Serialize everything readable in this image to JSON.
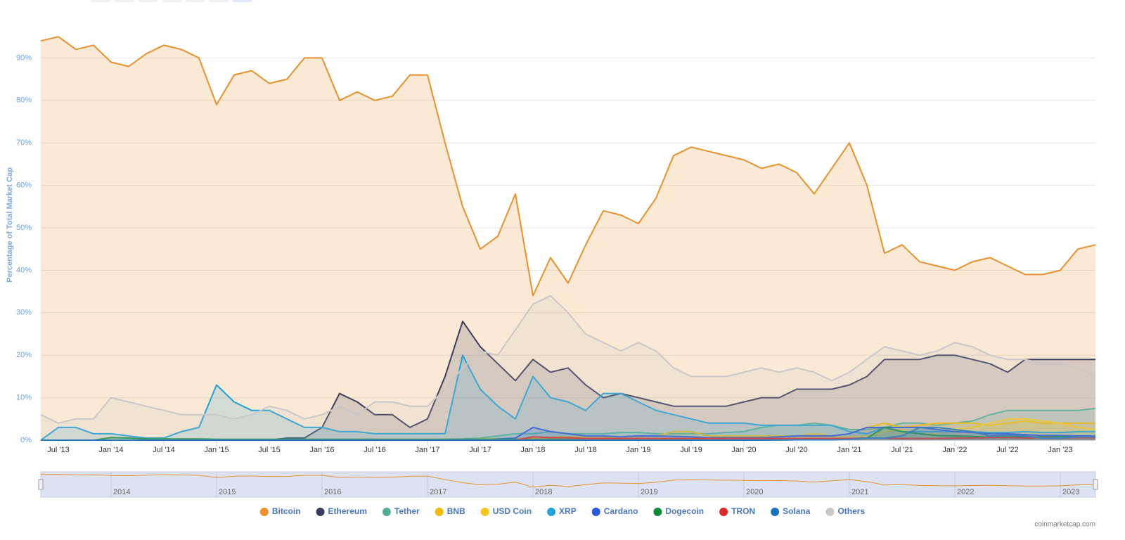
{
  "chart_data": {
    "type": "area",
    "y_label": "Percentage of Total Market Cap",
    "credit": "coinmarketcap.com",
    "x": [
      "2013-05",
      "2013-07",
      "2013-09",
      "2013-11",
      "2014-01",
      "2014-03",
      "2014-05",
      "2014-07",
      "2014-09",
      "2014-11",
      "2015-01",
      "2015-03",
      "2015-05",
      "2015-07",
      "2015-09",
      "2015-11",
      "2016-01",
      "2016-03",
      "2016-05",
      "2016-07",
      "2016-09",
      "2016-11",
      "2017-01",
      "2017-03",
      "2017-05",
      "2017-07",
      "2017-09",
      "2017-11",
      "2018-01",
      "2018-03",
      "2018-05",
      "2018-07",
      "2018-09",
      "2018-11",
      "2019-01",
      "2019-03",
      "2019-05",
      "2019-07",
      "2019-09",
      "2019-11",
      "2020-01",
      "2020-03",
      "2020-05",
      "2020-07",
      "2020-09",
      "2020-11",
      "2021-01",
      "2021-03",
      "2021-05",
      "2021-07",
      "2021-09",
      "2021-11",
      "2022-01",
      "2022-03",
      "2022-05",
      "2022-07",
      "2022-09",
      "2022-11",
      "2023-01",
      "2023-03",
      "2023-05"
    ],
    "xlim": [
      "2013-05",
      "2023-05"
    ],
    "xticks": [
      {
        "value": "2013-07",
        "label": "Jul '13"
      },
      {
        "value": "2014-01",
        "label": "Jan '14"
      },
      {
        "value": "2014-07",
        "label": "Jul '14"
      },
      {
        "value": "2015-01",
        "label": "Jan '15"
      },
      {
        "value": "2015-07",
        "label": "Jul '15"
      },
      {
        "value": "2016-01",
        "label": "Jan '16"
      },
      {
        "value": "2016-07",
        "label": "Jul '16"
      },
      {
        "value": "2017-01",
        "label": "Jan '17"
      },
      {
        "value": "2017-07",
        "label": "Jul '17"
      },
      {
        "value": "2018-01",
        "label": "Jan '18"
      },
      {
        "value": "2018-07",
        "label": "Jul '18"
      },
      {
        "value": "2019-01",
        "label": "Jan '19"
      },
      {
        "value": "2019-07",
        "label": "Jul '19"
      },
      {
        "value": "2020-01",
        "label": "Jan '20"
      },
      {
        "value": "2020-07",
        "label": "Jul '20"
      },
      {
        "value": "2021-01",
        "label": "Jan '21"
      },
      {
        "value": "2021-07",
        "label": "Jul '21"
      },
      {
        "value": "2022-01",
        "label": "Jan '22"
      },
      {
        "value": "2022-07",
        "label": "Jul '22"
      },
      {
        "value": "2023-01",
        "label": "Jan '23"
      }
    ],
    "navigator_ticks": [
      {
        "value": "2014-01",
        "label": "2014"
      },
      {
        "value": "2015-01",
        "label": "2015"
      },
      {
        "value": "2016-01",
        "label": "2016"
      },
      {
        "value": "2017-01",
        "label": "2017"
      },
      {
        "value": "2018-01",
        "label": "2018"
      },
      {
        "value": "2019-01",
        "label": "2019"
      },
      {
        "value": "2020-01",
        "label": "2020"
      },
      {
        "value": "2021-01",
        "label": "2021"
      },
      {
        "value": "2022-01",
        "label": "2022"
      },
      {
        "value": "2023-01",
        "label": "2023"
      }
    ],
    "ylim": [
      0,
      100
    ],
    "yticks": [
      {
        "value": 0,
        "label": "0%"
      },
      {
        "value": 10,
        "label": "10%"
      },
      {
        "value": 20,
        "label": "20%"
      },
      {
        "value": 30,
        "label": "30%"
      },
      {
        "value": 40,
        "label": "40%"
      },
      {
        "value": 50,
        "label": "50%"
      },
      {
        "value": 60,
        "label": "60%"
      },
      {
        "value": 70,
        "label": "70%"
      },
      {
        "value": 80,
        "label": "80%"
      },
      {
        "value": 90,
        "label": "90%"
      }
    ],
    "grid": true,
    "series": [
      {
        "name": "Bitcoin",
        "color": "#e8912e",
        "values": [
          94,
          95,
          92,
          93,
          89,
          88,
          91,
          93,
          92,
          90,
          79,
          86,
          87,
          84,
          85,
          90,
          90,
          80,
          82,
          80,
          81,
          86,
          86,
          70,
          55,
          45,
          48,
          58,
          34,
          43,
          37,
          46,
          54,
          53,
          51,
          57,
          67,
          69,
          68,
          67,
          66,
          64,
          65,
          63,
          58,
          64,
          70,
          60,
          44,
          46,
          42,
          41,
          40,
          42,
          43,
          41,
          39,
          39,
          40,
          45,
          46
        ]
      },
      {
        "name": "Ethereum",
        "color": "#3c3c5d",
        "values": [
          0,
          0,
          0,
          0,
          0,
          0,
          0,
          0,
          0,
          0,
          0,
          0,
          0,
          0,
          0.5,
          0.5,
          3,
          11,
          9,
          6,
          6,
          3,
          5,
          15,
          28,
          22,
          18,
          14,
          19,
          16,
          17,
          13,
          10,
          11,
          10,
          9,
          8,
          8,
          8,
          8,
          9,
          10,
          10,
          12,
          12,
          12,
          13,
          15,
          19,
          19,
          19,
          20,
          20,
          19,
          18,
          16,
          19,
          19,
          19,
          19,
          19
        ]
      },
      {
        "name": "Tether",
        "color": "#50af95",
        "values": [
          0,
          0,
          0,
          0,
          0,
          0,
          0,
          0,
          0,
          0,
          0,
          0,
          0,
          0,
          0,
          0,
          0,
          0,
          0,
          0,
          0,
          0,
          0.1,
          0.2,
          0.3,
          0.5,
          1,
          1.5,
          1.5,
          2,
          1.5,
          1.5,
          1.5,
          1.8,
          1.8,
          1.5,
          1.5,
          1.5,
          1.5,
          1.8,
          2,
          3,
          3.5,
          3.5,
          4,
          3.5,
          2.5,
          2.5,
          3,
          4,
          4,
          3.5,
          4,
          4.5,
          6,
          7,
          7,
          7,
          7,
          7,
          7.5
        ]
      },
      {
        "name": "BNB",
        "color": "#f0b90b",
        "values": [
          0,
          0,
          0,
          0,
          0,
          0,
          0,
          0,
          0,
          0,
          0,
          0,
          0,
          0,
          0,
          0,
          0,
          0,
          0,
          0,
          0,
          0,
          0,
          0,
          0,
          0.3,
          0.3,
          0.3,
          0.5,
          0.7,
          0.8,
          0.8,
          0.6,
          0.7,
          0.8,
          1,
          2,
          2,
          1,
          1,
          1,
          1,
          1,
          1,
          1.5,
          1,
          1.5,
          3,
          4,
          3,
          3.5,
          4,
          4,
          4,
          3.5,
          4,
          4.5,
          4,
          4,
          4,
          4
        ]
      },
      {
        "name": "USD Coin",
        "color": "#f3c623",
        "values": [
          0,
          0,
          0,
          0,
          0,
          0,
          0,
          0,
          0,
          0,
          0,
          0,
          0,
          0,
          0,
          0,
          0,
          0,
          0,
          0,
          0,
          0,
          0,
          0,
          0,
          0,
          0,
          0,
          0,
          0,
          0,
          0,
          0,
          0.1,
          0.2,
          0.2,
          0.2,
          0.2,
          0.2,
          0.2,
          0.2,
          0.3,
          0.4,
          0.5,
          0.8,
          0.8,
          0.8,
          1,
          2,
          2.5,
          1.5,
          1.5,
          2.5,
          3,
          4,
          5,
          5,
          4.5,
          4,
          3,
          2.5
        ]
      },
      {
        "name": "XRP",
        "color": "#23a0d6",
        "values": [
          0,
          3,
          3,
          1.5,
          1.5,
          1,
          0.5,
          0.5,
          2,
          3,
          13,
          9,
          7,
          7,
          5,
          3,
          3,
          2,
          2,
          1.5,
          1.5,
          1.5,
          1.5,
          1.5,
          20,
          12,
          8,
          5,
          15,
          10,
          9,
          7,
          11,
          11,
          9,
          7,
          6,
          5,
          4,
          4,
          4,
          3.5,
          3.5,
          3.5,
          3.5,
          3.5,
          2,
          1.5,
          3,
          2,
          2,
          2,
          2,
          2,
          1.8,
          1.8,
          2,
          1.8,
          1.8,
          2,
          2
        ]
      },
      {
        "name": "Cardano",
        "color": "#2a5ada",
        "values": [
          0,
          0,
          0,
          0,
          0,
          0,
          0,
          0,
          0,
          0,
          0,
          0,
          0,
          0,
          0,
          0,
          0,
          0,
          0,
          0,
          0,
          0,
          0,
          0,
          0,
          0,
          0.3,
          0.5,
          3,
          2,
          1.5,
          1,
          1,
          0.8,
          1,
          1,
          0.9,
          0.8,
          0.6,
          0.6,
          0.6,
          0.6,
          0.8,
          1,
          1,
          1,
          1.5,
          3,
          3,
          3,
          3,
          2.5,
          2,
          1.8,
          1.5,
          1.5,
          1.3,
          1.1,
          1.1,
          1,
          1
        ]
      },
      {
        "name": "Dogecoin",
        "color": "#128a3a",
        "values": [
          0,
          0,
          0,
          0,
          0.6,
          0.5,
          0.3,
          0.3,
          0.3,
          0.3,
          0.2,
          0.2,
          0.2,
          0.2,
          0.2,
          0.2,
          0.2,
          0.2,
          0.2,
          0.2,
          0.2,
          0.2,
          0.2,
          0.2,
          0.2,
          0.2,
          0.2,
          0.2,
          0.2,
          0.2,
          0.2,
          0.2,
          0.2,
          0.2,
          0.2,
          0.2,
          0.2,
          0.2,
          0.2,
          0.2,
          0.2,
          0.2,
          0.2,
          0.2,
          0.2,
          0.2,
          0.3,
          0.5,
          3,
          2,
          1.5,
          1.1,
          1,
          0.9,
          0.7,
          0.8,
          0.8,
          0.8,
          0.8,
          0.7,
          0.6
        ]
      },
      {
        "name": "TRON",
        "color": "#d82b2b",
        "values": [
          0,
          0,
          0,
          0,
          0,
          0,
          0,
          0,
          0,
          0,
          0,
          0,
          0,
          0,
          0,
          0,
          0,
          0,
          0,
          0,
          0,
          0,
          0,
          0,
          0,
          0,
          0,
          0,
          0.8,
          0.6,
          0.6,
          0.4,
          0.4,
          0.4,
          0.4,
          0.4,
          0.4,
          0.4,
          0.4,
          0.4,
          0.4,
          0.4,
          0.4,
          0.4,
          0.4,
          0.4,
          0.4,
          0.5,
          0.5,
          0.4,
          0.4,
          0.4,
          0.5,
          0.5,
          0.6,
          0.6,
          0.5,
          0.6,
          0.5,
          0.6,
          0.6
        ]
      },
      {
        "name": "Solana",
        "color": "#1e73be",
        "values": [
          0,
          0,
          0,
          0,
          0,
          0,
          0,
          0,
          0,
          0,
          0,
          0,
          0,
          0,
          0,
          0,
          0,
          0,
          0,
          0,
          0,
          0,
          0,
          0,
          0,
          0,
          0,
          0,
          0,
          0,
          0,
          0,
          0,
          0,
          0,
          0,
          0,
          0,
          0,
          0,
          0,
          0,
          0.05,
          0.1,
          0.1,
          0.1,
          0.2,
          0.5,
          0.5,
          1,
          3,
          3,
          2.5,
          2,
          1,
          1.2,
          1,
          0.5,
          0.5,
          0.8,
          0.8
        ]
      },
      {
        "name": "Others",
        "color": "#c8c8c8",
        "values": [
          6,
          4,
          5,
          5,
          10,
          9,
          8,
          7,
          6,
          6,
          6,
          5,
          6,
          8,
          7,
          5,
          6,
          8,
          6,
          9,
          9,
          8,
          8,
          12,
          17,
          21,
          20,
          26,
          32,
          34,
          30,
          25,
          23,
          21,
          23,
          21,
          17,
          15,
          15,
          15,
          16,
          17,
          16,
          17,
          16,
          14,
          16,
          19,
          22,
          21,
          20,
          21,
          23,
          22,
          20,
          19,
          19,
          18,
          18,
          17,
          15
        ]
      }
    ]
  }
}
